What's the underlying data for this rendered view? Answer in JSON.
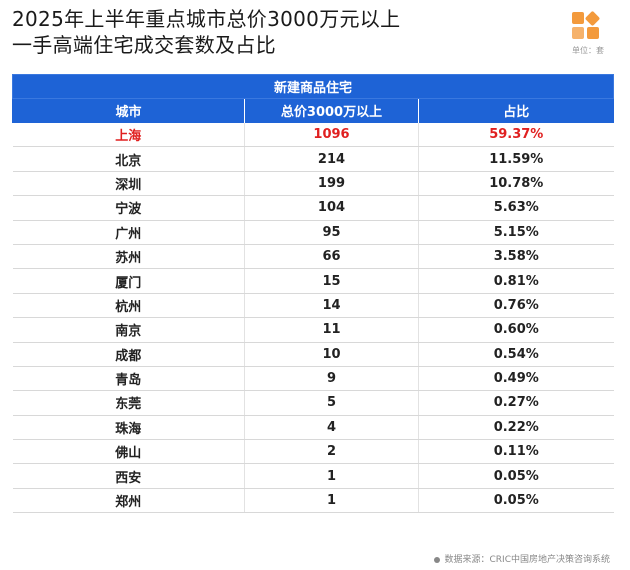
{
  "title": {
    "line1": "2025年上半年重点城市总价3000万元以上",
    "line2": "一手高端住宅成交套数及占比"
  },
  "logo": {
    "icon": "cric-logo-icon",
    "color": "#f39a3c"
  },
  "unit_label": "单位：套",
  "table": {
    "group_header": "新建商品住宅",
    "columns": [
      "城市",
      "总价3000万以上",
      "占比"
    ],
    "rows": [
      {
        "city": "上海",
        "count": "1096",
        "share": "59.37%",
        "highlight": true
      },
      {
        "city": "北京",
        "count": "214",
        "share": "11.59%"
      },
      {
        "city": "深圳",
        "count": "199",
        "share": "10.78%"
      },
      {
        "city": "宁波",
        "count": "104",
        "share": "5.63%"
      },
      {
        "city": "广州",
        "count": "95",
        "share": "5.15%"
      },
      {
        "city": "苏州",
        "count": "66",
        "share": "3.58%"
      },
      {
        "city": "厦门",
        "count": "15",
        "share": "0.81%"
      },
      {
        "city": "杭州",
        "count": "14",
        "share": "0.76%"
      },
      {
        "city": "南京",
        "count": "11",
        "share": "0.60%"
      },
      {
        "city": "成都",
        "count": "10",
        "share": "0.54%"
      },
      {
        "city": "青岛",
        "count": "9",
        "share": "0.49%"
      },
      {
        "city": "东莞",
        "count": "5",
        "share": "0.27%"
      },
      {
        "city": "珠海",
        "count": "4",
        "share": "0.22%"
      },
      {
        "city": "佛山",
        "count": "2",
        "share": "0.11%"
      },
      {
        "city": "西安",
        "count": "1",
        "share": "0.05%"
      },
      {
        "city": "郑州",
        "count": "1",
        "share": "0.05%"
      }
    ]
  },
  "footer": {
    "source": "数据来源：CRIC中国房地产决策咨询系统"
  },
  "colors": {
    "header_blue": "#1e63d6",
    "highlight_red": "#e02020"
  }
}
